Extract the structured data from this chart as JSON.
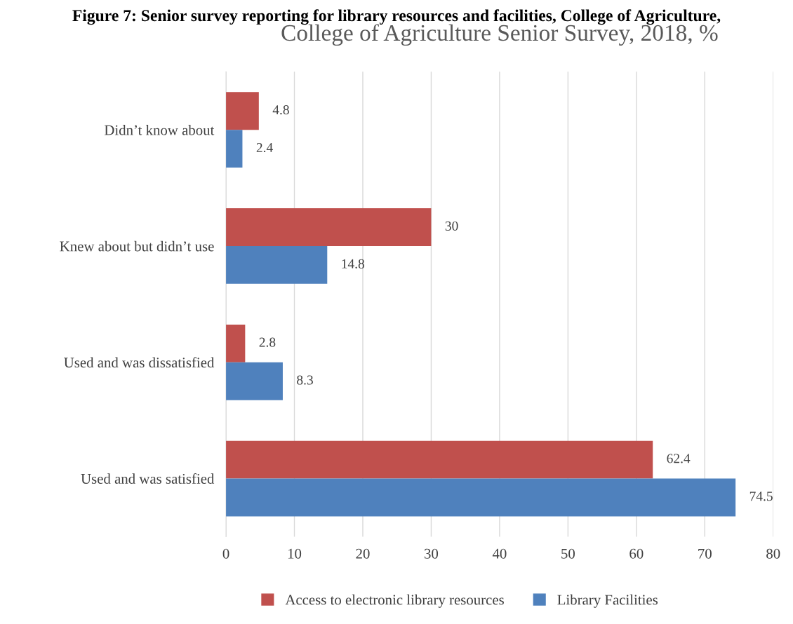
{
  "chart_data": {
    "type": "bar",
    "orientation": "horizontal",
    "title": "College of Agriculture Senior Survey, 2018, %",
    "annotations": [
      "Figure 7: Senior survey reporting for library resources and facilities, College of Agriculture,"
    ],
    "categories": [
      "Didn’t know about",
      "Knew about but didn’t use",
      "Used and was dissatisfied",
      "Used and was satisfied"
    ],
    "series": [
      {
        "name": "Access to electronic library resources",
        "color": "#c0504d",
        "values": [
          4.8,
          30,
          2.8,
          62.4
        ]
      },
      {
        "name": "Library Facilities",
        "color": "#4f81bd",
        "values": [
          2.4,
          14.8,
          8.3,
          74.5
        ]
      }
    ],
    "xlim": [
      0,
      80
    ],
    "xticks": [
      0,
      10,
      20,
      30,
      40,
      50,
      60,
      70,
      80
    ],
    "grid": "x",
    "legend": "bottom",
    "data_labels": true
  }
}
